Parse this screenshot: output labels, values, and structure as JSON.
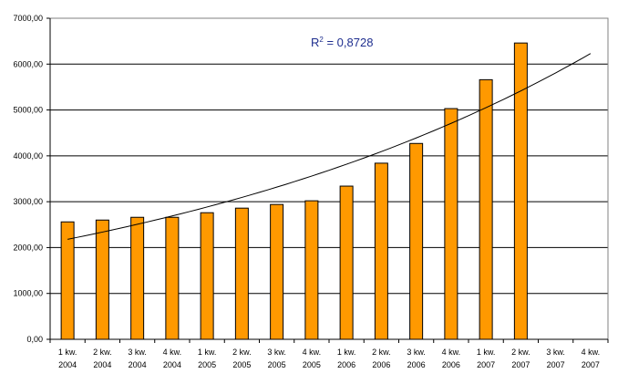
{
  "chart_data": {
    "type": "bar",
    "categories": [
      [
        "1 kw.",
        "2004"
      ],
      [
        "2 kw.",
        "2004"
      ],
      [
        "3 kw.",
        "2004"
      ],
      [
        "4 kw.",
        "2004"
      ],
      [
        "1 kw.",
        "2005"
      ],
      [
        "2 kw.",
        "2005"
      ],
      [
        "3 kw.",
        "2005"
      ],
      [
        "4 kw.",
        "2005"
      ],
      [
        "1 kw.",
        "2006"
      ],
      [
        "2 kw.",
        "2006"
      ],
      [
        "3 kw.",
        "2006"
      ],
      [
        "4 kw.",
        "2006"
      ],
      [
        "1 kw.",
        "2007"
      ],
      [
        "2 kw.",
        "2007"
      ],
      [
        "3 kw.",
        "2007"
      ],
      [
        "4 kw.",
        "2007"
      ]
    ],
    "values": [
      2560,
      2600,
      2660,
      2660,
      2760,
      2860,
      2940,
      3020,
      3340,
      3840,
      4270,
      5030,
      5660,
      6460,
      null,
      null
    ],
    "trendline": {
      "type": "exponential",
      "start_value": 2180,
      "end_value": 6230,
      "r2_prefix": "R",
      "r2_sup": "2",
      "r2_rest": " = 0,8728"
    },
    "y_ticks": [
      "0,00",
      "1000,00",
      "2000,00",
      "3000,00",
      "4000,00",
      "5000,00",
      "6000,00",
      "7000,00"
    ],
    "ylim": [
      0,
      7000
    ],
    "ystep": 1000,
    "grid": true,
    "legend": false,
    "colors": {
      "bar_fill": "#FF9900",
      "bar_stroke": "#000000",
      "gridline": "#000000",
      "trendline": "#000000",
      "r2_text": "#1F2F8F"
    }
  }
}
